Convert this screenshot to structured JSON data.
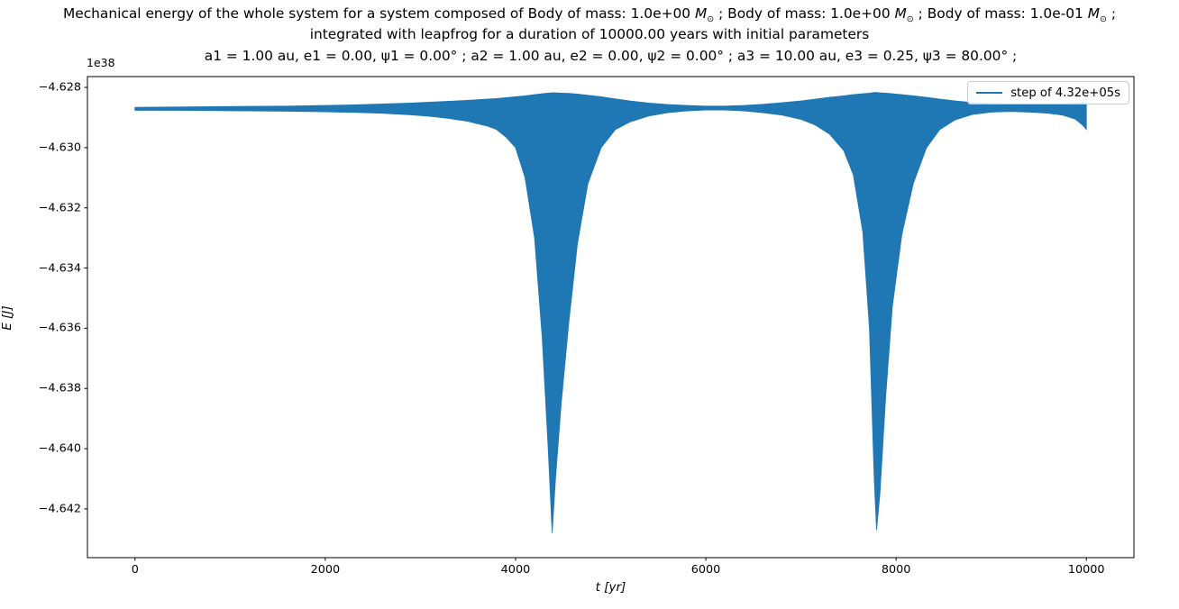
{
  "figure": {
    "title_line1_prefix": "Mechanical energy of the whole system for a system composed of ",
    "body1": "Body of mass: 1.0e+00 ",
    "body2": "Body of mass: 1.0e+00 ",
    "body3": "Body of mass: 1.0e-01 ",
    "mass_symbol": "M",
    "sun_symbol": "⊙",
    "separator_mid": " ; ",
    "separator_end": " ;",
    "title_line2": "integrated with leapfrog for a duration of 10000.00 years with initial parameters",
    "title_line3": "a1 = 1.00 au, e1 = 0.00, ψ1 = 0.00° ; a2 = 1.00 au, e2 = 0.00, ψ2 = 0.00° ; a3 = 10.00 au, e3 = 0.25, ψ3 = 80.00° ;"
  },
  "axes": {
    "offset_text": "1e38",
    "xlabel": "t [yr]",
    "ylabel": "E [J]"
  },
  "legend": {
    "label": "step of 4.32e+05s",
    "line_color": "#1f77b4"
  },
  "chart_data": {
    "type": "area",
    "title": "Mechanical energy of the whole system (leapfrog, 10000 yr)",
    "xlabel": "t [yr]",
    "ylabel": "E [J]",
    "y_offset_factor": "1e38",
    "series_name": "step of 4.32e+05s",
    "series_color": "#1f77b4",
    "xlim": [
      -500,
      10500
    ],
    "ylim": [
      -4.64362,
      -4.62764
    ],
    "xticks": [
      0,
      2000,
      4000,
      6000,
      8000,
      10000
    ],
    "xtick_labels": [
      "0",
      "2000",
      "4000",
      "6000",
      "8000",
      "10000"
    ],
    "yticks": [
      -4.628,
      -4.63,
      -4.632,
      -4.634,
      -4.636,
      -4.638,
      -4.64,
      -4.642
    ],
    "ytick_labels": [
      "−4.628",
      "−4.630",
      "−4.632",
      "−4.634",
      "−4.636",
      "−4.638",
      "−4.640",
      "−4.642"
    ],
    "grid": false,
    "legend_position": "upper right",
    "envelope": {
      "note": "oscillating energy band; values are E/1e38 J; upper/lower envelope vs t in years; deep spikes at ~4385 yr and ~7795 yr",
      "t": [
        0,
        400,
        800,
        1200,
        1600,
        2000,
        2300,
        2600,
        2900,
        3100,
        3300,
        3500,
        3700,
        3800,
        3900,
        4000,
        4100,
        4200,
        4280,
        4340,
        4385,
        4420,
        4480,
        4560,
        4650,
        4760,
        4900,
        5050,
        5200,
        5400,
        5600,
        5800,
        6000,
        6200,
        6400,
        6600,
        6800,
        7000,
        7150,
        7300,
        7450,
        7550,
        7650,
        7720,
        7770,
        7795,
        7830,
        7890,
        7960,
        8060,
        8180,
        8320,
        8460,
        8620,
        8800,
        9000,
        9200,
        9400,
        9600,
        9750,
        9880,
        9960,
        10000
      ],
      "upper": [
        -4.62866,
        -4.62865,
        -4.62864,
        -4.62863,
        -4.62862,
        -4.6286,
        -4.62858,
        -4.62855,
        -4.62852,
        -4.62849,
        -4.62846,
        -4.62843,
        -4.62839,
        -4.62837,
        -4.62834,
        -4.62831,
        -4.62828,
        -4.62824,
        -4.62821,
        -4.62819,
        -4.62818,
        -4.62818,
        -4.62819,
        -4.6282,
        -4.62822,
        -4.62826,
        -4.62831,
        -4.62838,
        -4.62845,
        -4.62852,
        -4.62857,
        -4.6286,
        -4.62862,
        -4.62862,
        -4.6286,
        -4.62856,
        -4.62851,
        -4.62845,
        -4.62839,
        -4.62833,
        -4.62828,
        -4.62824,
        -4.62821,
        -4.62819,
        -4.62817,
        -4.62817,
        -4.62818,
        -4.62819,
        -4.62821,
        -4.62824,
        -4.62828,
        -4.62833,
        -4.62839,
        -4.62845,
        -4.6285,
        -4.62853,
        -4.62855,
        -4.62856,
        -4.62856,
        -4.62855,
        -4.62853,
        -4.62851,
        -4.6285
      ],
      "lower": [
        -4.62876,
        -4.62876,
        -4.62877,
        -4.62878,
        -4.62879,
        -4.62881,
        -4.62883,
        -4.62886,
        -4.62891,
        -4.62896,
        -4.62903,
        -4.62913,
        -4.62928,
        -4.6294,
        -4.62965,
        -4.63,
        -4.631,
        -4.633,
        -4.6363,
        -4.6398,
        -4.6428,
        -4.641,
        -4.6385,
        -4.6358,
        -4.6332,
        -4.6312,
        -4.63,
        -4.6294,
        -4.62915,
        -4.62895,
        -4.62884,
        -4.62878,
        -4.62875,
        -4.62875,
        -4.62878,
        -4.62884,
        -4.62892,
        -4.62906,
        -4.62925,
        -4.62955,
        -4.6301,
        -4.6309,
        -4.6328,
        -4.636,
        -4.641,
        -4.6427,
        -4.6415,
        -4.6383,
        -4.6353,
        -4.6329,
        -4.6312,
        -4.63,
        -4.6294,
        -4.62908,
        -4.6289,
        -4.62882,
        -4.6288,
        -4.62882,
        -4.62886,
        -4.62892,
        -4.62905,
        -4.62925,
        -4.6294
      ]
    }
  }
}
